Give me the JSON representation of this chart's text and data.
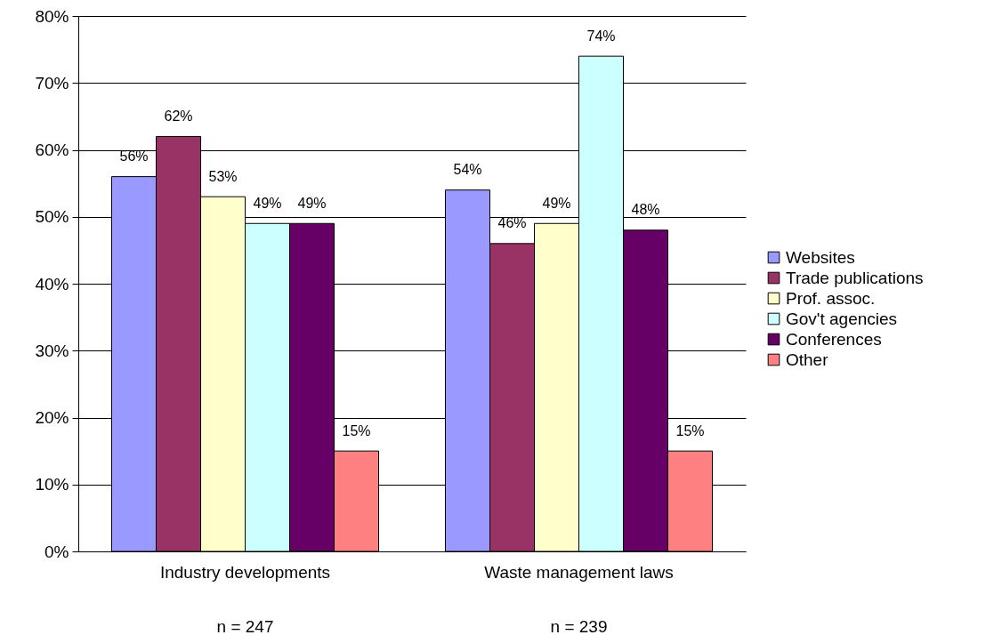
{
  "chart_data": {
    "type": "bar",
    "categories": [
      "Industry developments",
      "Waste management laws"
    ],
    "series": [
      {
        "name": "Websites",
        "color": "#9999ff",
        "values": [
          56,
          54
        ],
        "value_labels": [
          "56%",
          "54%"
        ]
      },
      {
        "name": "Trade publications",
        "color": "#993366",
        "values": [
          62,
          46
        ],
        "value_labels": [
          "62%",
          "46%"
        ]
      },
      {
        "name": "Prof. assoc.",
        "color": "#ffffcc",
        "values": [
          53,
          49
        ],
        "value_labels": [
          "53%",
          "49%"
        ]
      },
      {
        "name": "Gov't agencies",
        "color": "#ccffff",
        "values": [
          49,
          74
        ],
        "value_labels": [
          "49%",
          "74%"
        ]
      },
      {
        "name": "Conferences",
        "color": "#660066",
        "values": [
          49,
          48
        ],
        "value_labels": [
          "49%",
          "48%"
        ]
      },
      {
        "name": "Other",
        "color": "#ff8080",
        "values": [
          15,
          15
        ],
        "value_labels": [
          "15%",
          "15%"
        ]
      }
    ],
    "ylim": [
      0,
      80
    ],
    "yticks": [
      {
        "value": 0,
        "label": "0%"
      },
      {
        "value": 10,
        "label": "10%"
      },
      {
        "value": 20,
        "label": "20%"
      },
      {
        "value": 30,
        "label": "30%"
      },
      {
        "value": 40,
        "label": "40%"
      },
      {
        "value": 50,
        "label": "50%"
      },
      {
        "value": 60,
        "label": "60%"
      },
      {
        "value": 70,
        "label": "70%"
      },
      {
        "value": 80,
        "label": "80%"
      }
    ],
    "grid": "y",
    "legend": "right",
    "annotations": [
      "n = 247",
      "n = 239"
    ]
  }
}
